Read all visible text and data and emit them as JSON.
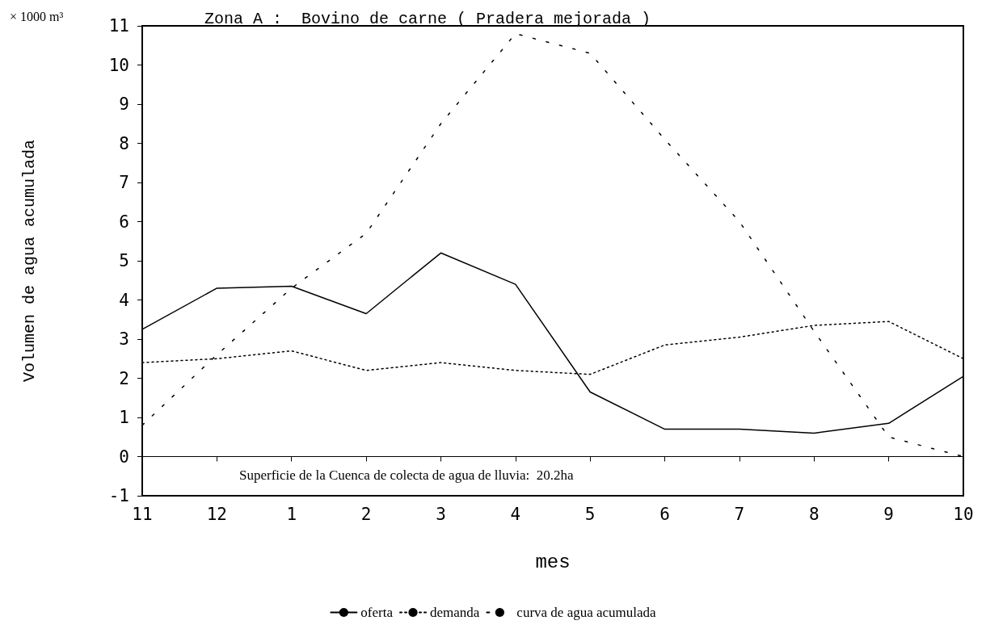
{
  "chart_data": {
    "type": "line",
    "title": "Zona A :  Bovino de carne ( Pradera mejorada )",
    "xlabel": "mes",
    "ylabel": "Volumen de agua acumulada",
    "annotations": [
      "× 1000 m³",
      "Superficie de la Cuenca de colecta de agua de lluvia:  20.2ha"
    ],
    "categories": [
      "11",
      "12",
      "1",
      "2",
      "3",
      "4",
      "5",
      "6",
      "7",
      "8",
      "9",
      "10"
    ],
    "series": [
      {
        "name": "oferta",
        "color": "#000000",
        "line_style": "solid",
        "values": [
          3.25,
          4.3,
          4.35,
          3.65,
          5.2,
          4.4,
          1.65,
          0.7,
          0.7,
          0.6,
          0.85,
          2.05
        ]
      },
      {
        "name": "demanda",
        "color": "#000000",
        "line_style": "dotted",
        "values": [
          2.4,
          2.5,
          2.7,
          2.2,
          2.4,
          2.2,
          2.1,
          2.85,
          3.05,
          3.35,
          3.45,
          2.5
        ]
      },
      {
        "name": "curva de agua acumulada",
        "color": "#000000",
        "line_style": "dashed",
        "values": [
          0.8,
          2.6,
          4.3,
          5.7,
          8.5,
          10.8,
          10.3,
          8.1,
          6.0,
          3.2,
          0.5,
          0
        ]
      }
    ],
    "ylim": [
      -1,
      11
    ],
    "yticks": [
      -1,
      0,
      1,
      2,
      3,
      4,
      5,
      6,
      7,
      8,
      9,
      10,
      11
    ],
    "grid": false,
    "legend": "bottom",
    "marker": "none",
    "ref_lines": [
      {
        "axis": "y",
        "value": 0,
        "color": "#000000",
        "line_style": "solid"
      }
    ]
  }
}
